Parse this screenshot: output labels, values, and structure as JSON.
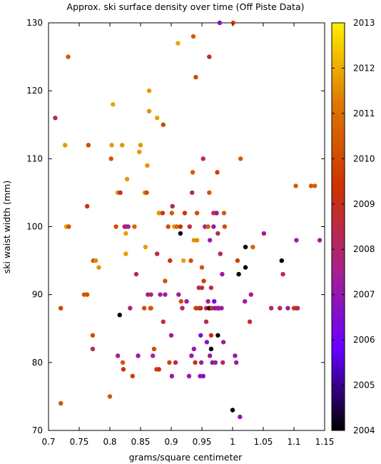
{
  "chart_data": {
    "type": "scatter",
    "title": "Approx. ski surface density over time (Off Piste Data)",
    "xlabel": "grams/square centimeter",
    "ylabel": "ski waist width (mm)",
    "xlim": [
      0.7,
      1.15
    ],
    "ylim": [
      70,
      130
    ],
    "x_ticks": [
      "0.7",
      "0.75",
      "0.8",
      "0.85",
      "0.9",
      "0.95",
      "1",
      "1.05",
      "1.1",
      "1.15"
    ],
    "y_ticks": [
      "70",
      "80",
      "90",
      "100",
      "110",
      "120",
      "130"
    ],
    "colorbar": {
      "label_values": [
        "2004",
        "2005",
        "2006",
        "2007",
        "2008",
        "2009",
        "2010",
        "2011",
        "2012",
        "2013"
      ],
      "range": [
        2004,
        2013
      ],
      "palette": [
        "#000000",
        "#6600ff",
        "#aa2288",
        "#cc3300",
        "#dd7700",
        "#ffee00"
      ]
    },
    "grid": false,
    "series": [
      {
        "points": [
          [
            0.711,
            116,
            2008.2
          ],
          [
            0.72,
            74,
            2010.3
          ],
          [
            0.72,
            88,
            2009.8
          ],
          [
            0.727,
            112,
            2011.7
          ],
          [
            0.729,
            100,
            2011.8
          ],
          [
            0.732,
            125,
            2010.4
          ],
          [
            0.733,
            100,
            2010.2
          ],
          [
            0.758,
            90,
            2010.4
          ],
          [
            0.763,
            103,
            2009.4
          ],
          [
            0.763,
            90,
            2010.3
          ],
          [
            0.765,
            112,
            2010.1
          ],
          [
            0.772,
            84,
            2010
          ],
          [
            0.772,
            82,
            2008.2
          ],
          [
            0.773,
            95,
            2010.2
          ],
          [
            0.777,
            95,
            2011.5
          ],
          [
            0.782,
            94,
            2011.6
          ],
          [
            0.8,
            75,
            2010.3
          ],
          [
            0.802,
            110,
            2010.2
          ],
          [
            0.803,
            112,
            2011.7
          ],
          [
            0.805,
            118,
            2011.9
          ],
          [
            0.81,
            100,
            2010.1
          ],
          [
            0.813,
            81,
            2007.6
          ],
          [
            0.813,
            105,
            2011.5
          ],
          [
            0.816,
            87,
            2004.1
          ],
          [
            0.817,
            105,
            2008.7
          ],
          [
            0.82,
            112,
            2011.7
          ],
          [
            0.821,
            80,
            2010.3
          ],
          [
            0.822,
            79,
            2009.4
          ],
          [
            0.824,
            100,
            2008.2
          ],
          [
            0.826,
            96,
            2011.8
          ],
          [
            0.826,
            99,
            2011.8
          ],
          [
            0.827,
            100,
            2007.3
          ],
          [
            0.828,
            107,
            2011.7
          ],
          [
            0.83,
            100,
            2007.7
          ],
          [
            0.833,
            88,
            2007.9
          ],
          [
            0.837,
            78,
            2009.7
          ],
          [
            0.84,
            100,
            2010.7
          ],
          [
            0.843,
            93,
            2008.4
          ],
          [
            0.846,
            81,
            2007.2
          ],
          [
            0.848,
            111,
            2011.7
          ],
          [
            0.85,
            112,
            2011.7
          ],
          [
            0.856,
            88,
            2010.1
          ],
          [
            0.857,
            105,
            2011.6
          ],
          [
            0.858,
            97,
            2011.8
          ],
          [
            0.86,
            105,
            2010.1
          ],
          [
            0.861,
            109,
            2011.6
          ],
          [
            0.862,
            90,
            2007.3
          ],
          [
            0.864,
            117,
            2011.6
          ],
          [
            0.864,
            120,
            2011.7
          ],
          [
            0.866,
            88,
            2010.6
          ],
          [
            0.867,
            88,
            2010.3
          ],
          [
            0.867,
            90,
            2008.3
          ],
          [
            0.87,
            81,
            2007.5
          ],
          [
            0.872,
            82,
            2010.1
          ],
          [
            0.876,
            79,
            2009.8
          ],
          [
            0.877,
            116,
            2011.8
          ],
          [
            0.877,
            96,
            2008.3
          ],
          [
            0.88,
            79,
            2009.2
          ],
          [
            0.88,
            102,
            2011.6
          ],
          [
            0.882,
            90,
            2007.3
          ],
          [
            0.886,
            102,
            2009.3
          ],
          [
            0.887,
            86,
            2008.5
          ],
          [
            0.887,
            115,
            2009.9
          ],
          [
            0.89,
            92,
            2010.2
          ],
          [
            0.89,
            90,
            2007.3
          ],
          [
            0.895,
            100,
            2010.1
          ],
          [
            0.897,
            80,
            2009.9
          ],
          [
            0.898,
            95,
            2009.3
          ],
          [
            0.9,
            84,
            2007.2
          ],
          [
            0.901,
            78,
            2007.1
          ],
          [
            0.901,
            102,
            2010.4
          ],
          [
            0.902,
            103,
            2008.3
          ],
          [
            0.905,
            100,
            2011.7
          ],
          [
            0.907,
            80,
            2008.3
          ],
          [
            0.909,
            100,
            2010.7
          ],
          [
            0.911,
            127,
            2011.9
          ],
          [
            0.912,
            90,
            2007.3
          ],
          [
            0.915,
            99,
            2004.1
          ],
          [
            0.915,
            100,
            2009.3
          ],
          [
            0.916,
            89,
            2010.1
          ],
          [
            0.918,
            88,
            2008.4
          ],
          [
            0.92,
            95,
            2011.8
          ],
          [
            0.922,
            102,
            2009.4
          ],
          [
            0.925,
            89,
            2007.3
          ],
          [
            0.929,
            78,
            2007.1
          ],
          [
            0.93,
            100,
            2008.5
          ],
          [
            0.932,
            95,
            2010.1
          ],
          [
            0.933,
            81,
            2007.1
          ],
          [
            0.934,
            105,
            2008.1
          ],
          [
            0.935,
            108,
            2010.4
          ],
          [
            0.936,
            128,
            2010.4
          ],
          [
            0.937,
            98,
            2011.6
          ],
          [
            0.937,
            82,
            2007.1
          ],
          [
            0.939,
            80,
            2009.3
          ],
          [
            0.94,
            88,
            2010.4
          ],
          [
            0.94,
            122,
            2009.9
          ],
          [
            0.941,
            88,
            2009.8
          ],
          [
            0.942,
            98,
            2011.5
          ],
          [
            0.942,
            102,
            2010.1
          ],
          [
            0.945,
            91,
            2008.3
          ],
          [
            0.946,
            88,
            2009
          ],
          [
            0.947,
            78,
            2007
          ],
          [
            0.948,
            84,
            2006.4
          ],
          [
            0.948,
            88,
            2008.6
          ],
          [
            0.949,
            80,
            2007.3
          ],
          [
            0.95,
            91,
            2008.5
          ],
          [
            0.95,
            94,
            2010.4
          ],
          [
            0.952,
            78,
            2006.6
          ],
          [
            0.952,
            110,
            2008.5
          ],
          [
            0.953,
            92,
            2009.7
          ],
          [
            0.955,
            100,
            2007.3
          ],
          [
            0.957,
            86,
            2008.2
          ],
          [
            0.957,
            88,
            2008.1
          ],
          [
            0.958,
            83,
            2006.8
          ],
          [
            0.96,
            89,
            2007.4
          ],
          [
            0.96,
            100,
            2010.6
          ],
          [
            0.962,
            105,
            2010.3
          ],
          [
            0.962,
            125,
            2008.7
          ],
          [
            0.962,
            88,
            2004.1
          ],
          [
            0.963,
            98,
            2007.2
          ],
          [
            0.963,
            81,
            2007.1
          ],
          [
            0.965,
            91,
            2008.3
          ],
          [
            0.965,
            84,
            2009.1
          ],
          [
            0.965,
            82,
            2004.2
          ],
          [
            0.966,
            88,
            2009.3
          ],
          [
            0.967,
            80,
            2006.9
          ],
          [
            0.969,
            100,
            2007.1
          ],
          [
            0.969,
            102,
            2008.4
          ],
          [
            0.97,
            89,
            2006.3
          ],
          [
            0.971,
            88,
            2006.7
          ],
          [
            0.972,
            80,
            2007.4
          ],
          [
            0.973,
            102,
            2010.3
          ],
          [
            0.974,
            102,
            2007.3
          ],
          [
            0.975,
            108,
            2009.6
          ],
          [
            0.975,
            88,
            2007.1
          ],
          [
            0.976,
            84,
            2004.1
          ],
          [
            0.976,
            99,
            2008.3
          ],
          [
            0.977,
            88,
            2007.3
          ],
          [
            0.978,
            88,
            2007.3
          ],
          [
            0.979,
            130,
            2006.8
          ],
          [
            0.98,
            96,
            2008.2
          ],
          [
            0.982,
            88,
            2007.3
          ],
          [
            0.983,
            93,
            2007.3
          ],
          [
            0.984,
            80,
            2008.1
          ],
          [
            0.985,
            83,
            2007.3
          ],
          [
            0.986,
            102,
            2010.4
          ],
          [
            0.987,
            100,
            2010.2
          ],
          [
            1.0,
            73,
            2004.1
          ],
          [
            1.001,
            130,
            2009.8
          ],
          [
            1.004,
            81,
            2007.2
          ],
          [
            1.006,
            80,
            2007.3
          ],
          [
            1.008,
            95,
            2009.7
          ],
          [
            1.01,
            93,
            2004.1
          ],
          [
            1.012,
            72,
            2006.9
          ],
          [
            1.013,
            110,
            2010.4
          ],
          [
            1.02,
            89,
            2007.3
          ],
          [
            1.021,
            97,
            2004.1
          ],
          [
            1.021,
            94,
            2004.2
          ],
          [
            1.028,
            86,
            2008.7
          ],
          [
            1.03,
            90,
            2007.3
          ],
          [
            1.033,
            97,
            2010.6
          ],
          [
            1.051,
            99,
            2007.3
          ],
          [
            1.063,
            88,
            2008.3
          ],
          [
            1.077,
            88,
            2008.3
          ],
          [
            1.08,
            95,
            2004.1
          ],
          [
            1.082,
            93,
            2008.3
          ],
          [
            1.09,
            88,
            2007.3
          ],
          [
            1.1,
            88,
            2009.6
          ],
          [
            1.103,
            106,
            2010.4
          ],
          [
            1.104,
            88,
            2008.6
          ],
          [
            1.104,
            98,
            2007.3
          ],
          [
            1.106,
            88,
            2008.3
          ],
          [
            1.128,
            106,
            2010.3
          ],
          [
            1.134,
            106,
            2010.6
          ],
          [
            1.142,
            98,
            2007.3
          ]
        ]
      }
    ]
  }
}
